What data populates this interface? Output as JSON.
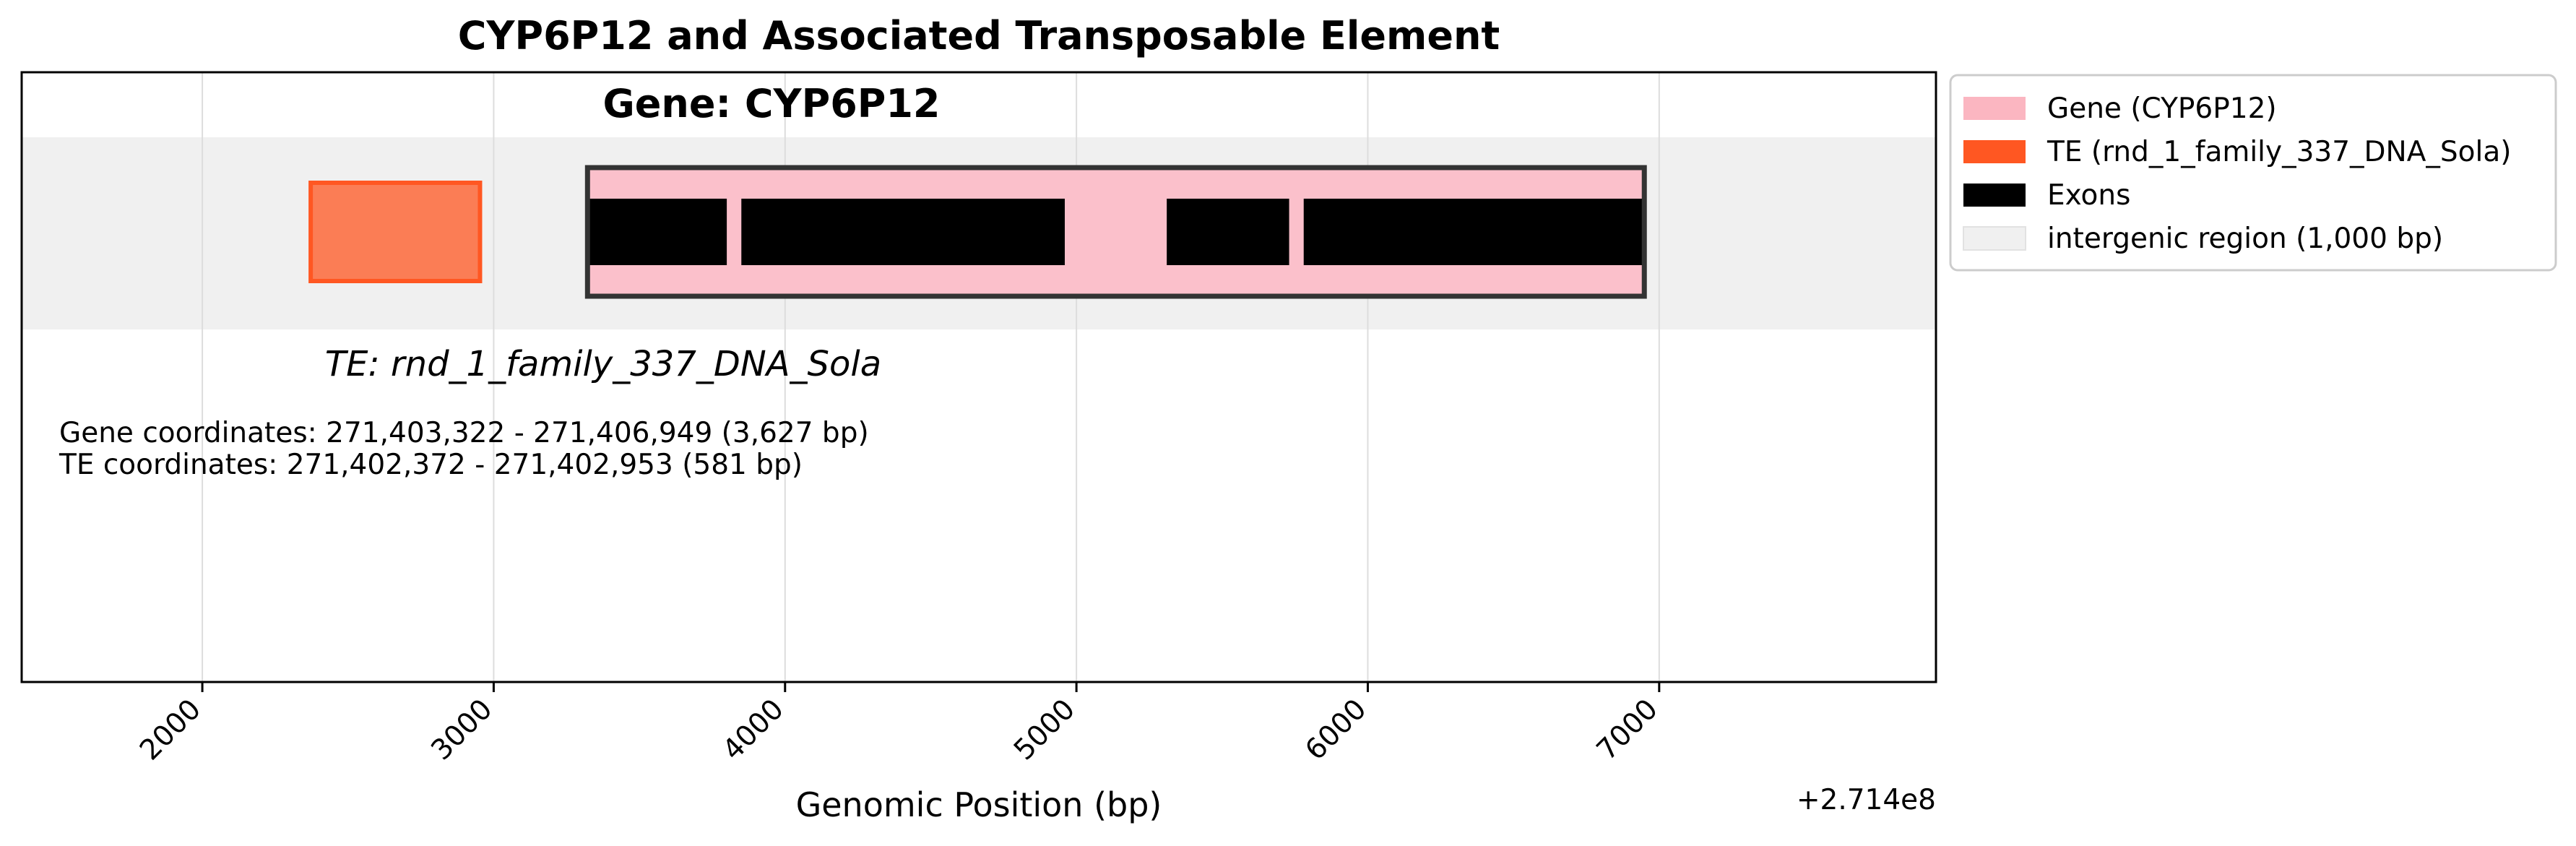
{
  "chart_data": {
    "type": "gene-track",
    "title": "CYP6P12 and Associated Transposable Element",
    "xlabel": "Genomic Position (bp)",
    "ylabel": "",
    "x_offset_label": "+2.714e8",
    "x_offset": 271400000,
    "xlim": [
      271401380,
      271407950
    ],
    "x_ticks": [
      271402000,
      271403000,
      271404000,
      271405000,
      271406000,
      271407000
    ],
    "x_tick_labels": [
      "2000",
      "3000",
      "4000",
      "5000",
      "6000",
      "7000"
    ],
    "grid": true,
    "intergenic_band": {
      "label": "intergenic region (1,000 bp)",
      "color": "#f0f0f0"
    },
    "gene": {
      "name": "CYP6P12",
      "label": "Gene: CYP6P12",
      "start": 271403322,
      "end": 271406949,
      "color": "#fbc0cb",
      "edge_color": "#333333"
    },
    "exons": [
      {
        "start": 271403322,
        "end": 271403800
      },
      {
        "start": 271403850,
        "end": 271404960
      },
      {
        "start": 271405310,
        "end": 271405730
      },
      {
        "start": 271405780,
        "end": 271406949
      }
    ],
    "te": {
      "name": "rnd_1_family_337_DNA_Sola",
      "label": "TE: rnd_1_family_337_DNA_Sola",
      "start": 271402372,
      "end": 271402953,
      "color": "#ff5722"
    },
    "annotations": [
      "Gene coordinates: 271,403,322 - 271,406,949 (3,627 bp)",
      "TE coordinates: 271,402,372 - 271,402,953 (581 bp)"
    ],
    "legend": {
      "placement": "outside-right",
      "entries": [
        {
          "label": "Gene (CYP6P12)",
          "color": "#fbb6c1"
        },
        {
          "label": "TE (rnd_1_family_337_DNA_Sola)",
          "color": "#ff5722"
        },
        {
          "label": "Exons",
          "color": "#000000"
        },
        {
          "label": "intergenic region (1,000 bp)",
          "color": "#f0f0f0"
        }
      ]
    }
  }
}
